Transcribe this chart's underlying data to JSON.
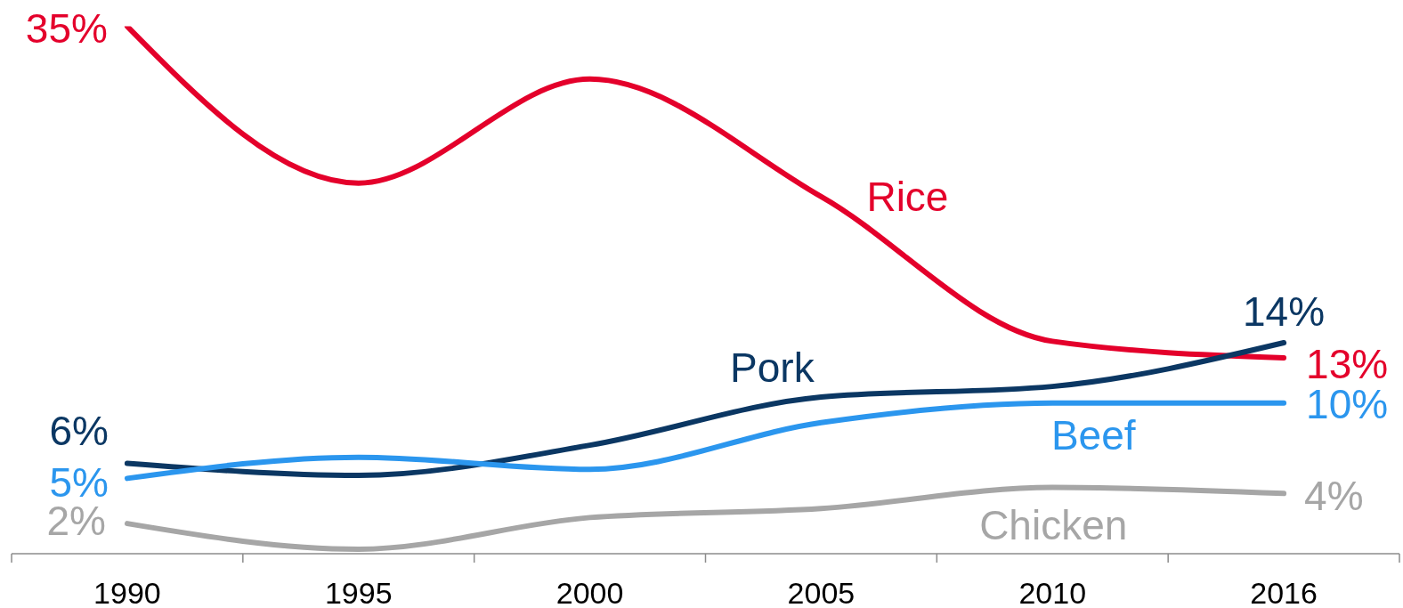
{
  "chart_data": {
    "type": "line",
    "categories": [
      "1990",
      "1995",
      "2000",
      "2005",
      "2010",
      "2016"
    ],
    "tick_labels": "x",
    "legend": false,
    "marker": "none",
    "line_style": "solid",
    "series": [
      {
        "name": "Rice",
        "color": "#e4002b",
        "values": [
          35,
          24.6,
          31.5,
          23.7,
          14.1,
          13
        ],
        "value_labels": [
          "35%",
          null,
          null,
          null,
          null,
          "13%"
        ]
      },
      {
        "name": "Pork",
        "color": "#0b3763",
        "values": [
          6,
          5.2,
          7.2,
          10.4,
          11.1,
          14
        ],
        "value_labels": [
          "6%",
          null,
          null,
          null,
          null,
          "14%"
        ]
      },
      {
        "name": "Beef",
        "color": "#2b96ee",
        "values": [
          5,
          6.4,
          5.6,
          8.7,
          10,
          10
        ],
        "value_labels": [
          "5%",
          null,
          null,
          null,
          null,
          "10%"
        ]
      },
      {
        "name": "Chicken",
        "color": "#a6a6a6",
        "values": [
          2,
          0.3,
          2.4,
          3,
          4.4,
          4
        ],
        "value_labels": [
          "2%",
          null,
          null,
          null,
          null,
          "4%"
        ]
      }
    ]
  }
}
